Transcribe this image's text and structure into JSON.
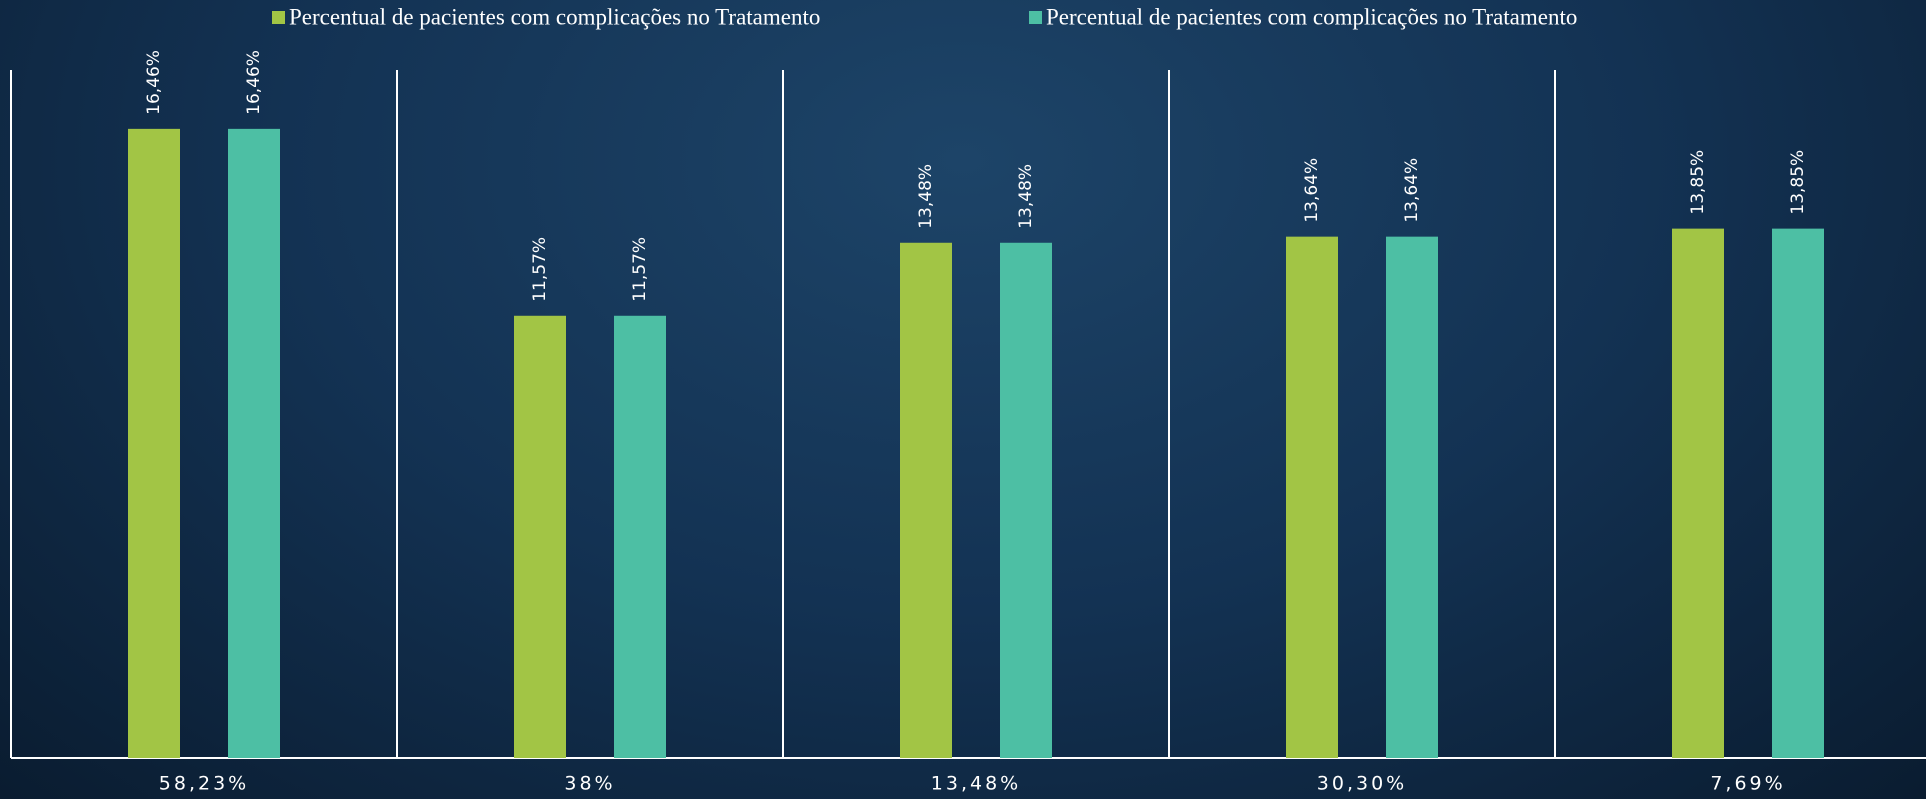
{
  "chart_data": {
    "type": "bar",
    "categories": [
      "58,23%",
      "38%",
      "13,48%",
      "30,30%",
      "7,69%"
    ],
    "series": [
      {
        "name": "Percentual de pacientes com complicações no Tratamento",
        "color": "#a2c545",
        "values": [
          16.46,
          11.57,
          13.48,
          13.64,
          13.85
        ],
        "value_labels": [
          "16,46%",
          "11,57%",
          "13,48%",
          "13,64%",
          "13,85%"
        ]
      },
      {
        "name": "Percentual de pacientes com complicações no Tratamento",
        "color": "#4dbfa4",
        "values": [
          16.46,
          11.57,
          13.48,
          13.64,
          13.85
        ],
        "value_labels": [
          "16,46%",
          "11,57%",
          "13,48%",
          "13,64%",
          "13,85%"
        ]
      }
    ],
    "ylim": [
      0,
      18
    ]
  }
}
